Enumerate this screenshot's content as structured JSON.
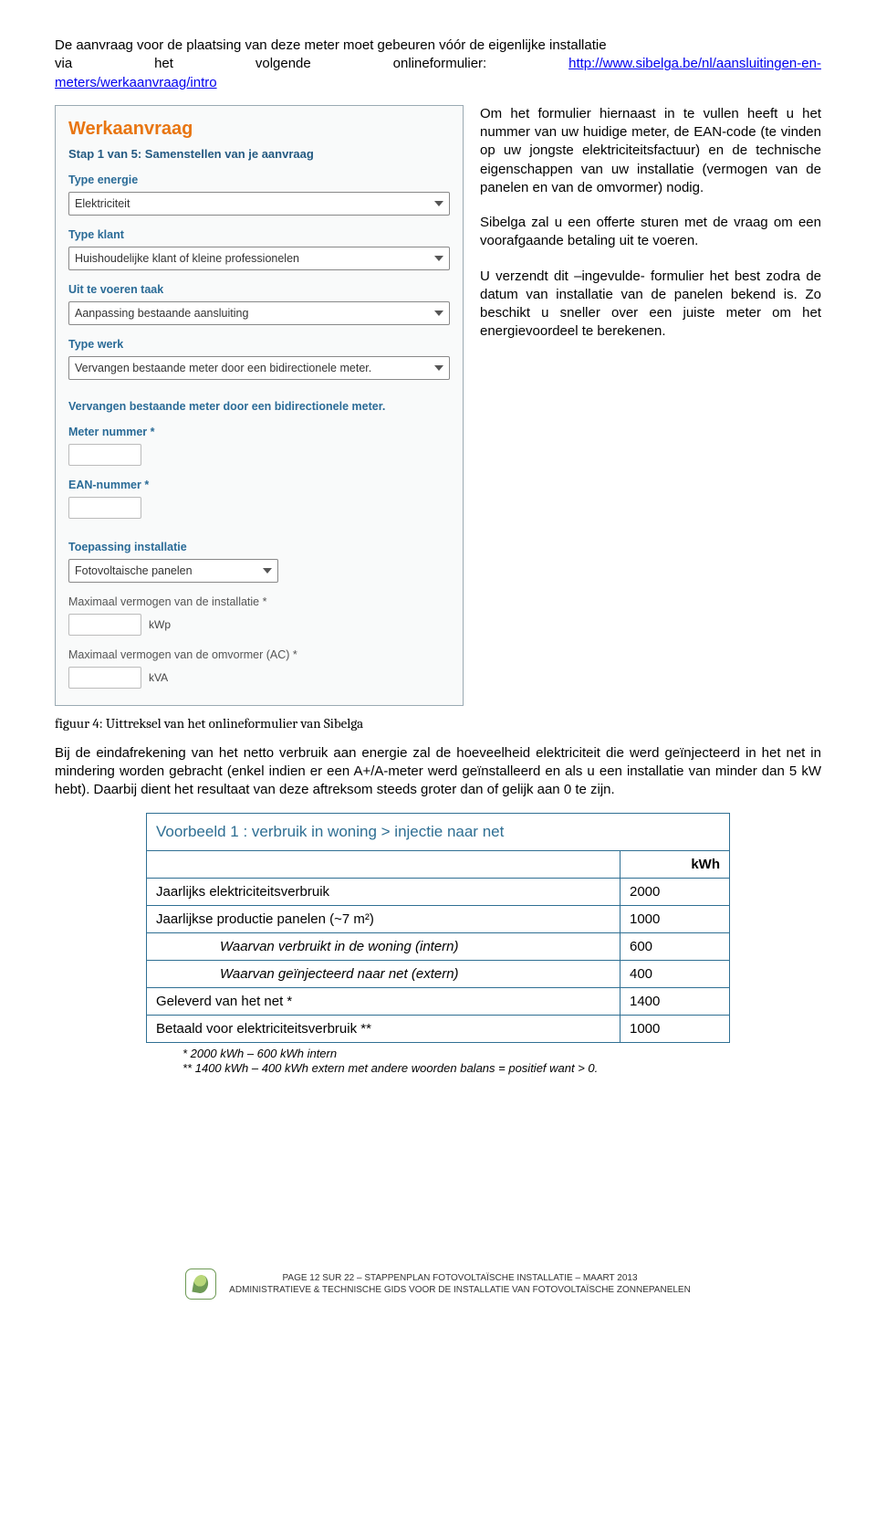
{
  "intro": {
    "line1": "De aanvraag voor de plaatsing van deze meter moet gebeuren vóór de eigenlijke installatie",
    "l2a": "via",
    "l2b": "het",
    "l2c": "volgende",
    "l2d": "onlineformulier:",
    "link_text": "http://www.sibelga.be/nl/aansluitingen-en-",
    "line3": "meters/werkaanvraag/intro"
  },
  "form": {
    "title": "Werkaanvraag",
    "step": "Stap 1 van 5: Samenstellen van je aanvraag",
    "labels": {
      "type_energie": "Type energie",
      "type_klant": "Type klant",
      "taak": "Uit te voeren taak",
      "type_werk": "Type werk",
      "meter_nummer": "Meter nummer *",
      "ean": "EAN-nummer *",
      "toepassing": "Toepassing installatie",
      "max_inst": "Maximaal vermogen van de installatie  *",
      "max_omv": "Maximaal vermogen van de omvormer (AC)  *"
    },
    "values": {
      "type_energie": "Elektriciteit",
      "type_klant": "Huishoudelijke klant of kleine professionelen",
      "taak": "Aanpassing bestaande aansluiting",
      "type_werk": "Vervangen bestaande meter door een bidirectionele meter.",
      "repeat_type_werk": "Vervangen bestaande meter door een bidirectionele meter.",
      "toepassing": "Fotovoltaische panelen",
      "unit_kwp": "kWp",
      "unit_kva": "kVA"
    }
  },
  "side": {
    "p1": "Om het formulier hiernaast in te vullen heeft u het nummer van uw huidige meter, de EAN-code (te vinden op uw jongste elektriciteitsfactuur) en de technische eigenschappen van uw installatie (vermogen van de panelen en van de omvormer) nodig.",
    "p2": "Sibelga zal u een offerte sturen met de vraag om een voorafgaande betaling uit te voeren.",
    "p3": "U verzendt dit –ingevulde- formulier het best zodra de datum van installatie van de panelen bekend is. Zo beschikt u sneller over een juiste meter om het energievoordeel te berekenen."
  },
  "caption": "figuur 4: Uittreksel van het onlineformulier van Sibelga",
  "para2": "Bij de eindafrekening van het netto verbruik aan energie zal de hoeveelheid elektriciteit die werd geïnjecteerd in het net in mindering worden gebracht (enkel indien er een A+/A-meter werd geïnstalleerd en als u een installatie van minder dan 5 kW hebt). Daarbij dient het resultaat van deze aftreksom steeds groter dan of gelijk aan 0 te zijn.",
  "table": {
    "title": "Voorbeeld 1 : verbruik in woning > injectie naar net",
    "unit": "kWh",
    "border_color": "#2f6f93",
    "title_color": "#2f6f93",
    "rows": [
      {
        "label": "Jaarlijks elektriciteitsverbruik",
        "value": "2000",
        "italic": false
      },
      {
        "label": "Jaarlijkse productie panelen (~7 m²)",
        "value": "1000",
        "italic": false
      },
      {
        "label": "Waarvan verbruikt in de woning (intern)",
        "value": "600",
        "italic": true
      },
      {
        "label": "Waarvan geïnjecteerd naar net (extern)",
        "value": "400",
        "italic": true
      },
      {
        "label": "Geleverd van het net *",
        "value": "1400",
        "italic": false
      },
      {
        "label": "Betaald voor elektriciteitsverbruik **",
        "value": "1000",
        "italic": false
      }
    ],
    "foot1": "*  2000 kWh – 600 kWh intern",
    "foot2": "** 1400 kWh – 400 kWh extern met andere woorden balans = positief want > 0."
  },
  "footer": {
    "l1": "PAGE 12 SUR 22 – STAPPENPLAN FOTOVOLTAÏSCHE INSTALLATIE – MAART 2013",
    "l2": "ADMINISTRATIEVE & TECHNISCHE GIDS VOOR DE INSTALLATIE VAN FOTOVOLTAÏSCHE ZONNEPANELEN"
  }
}
